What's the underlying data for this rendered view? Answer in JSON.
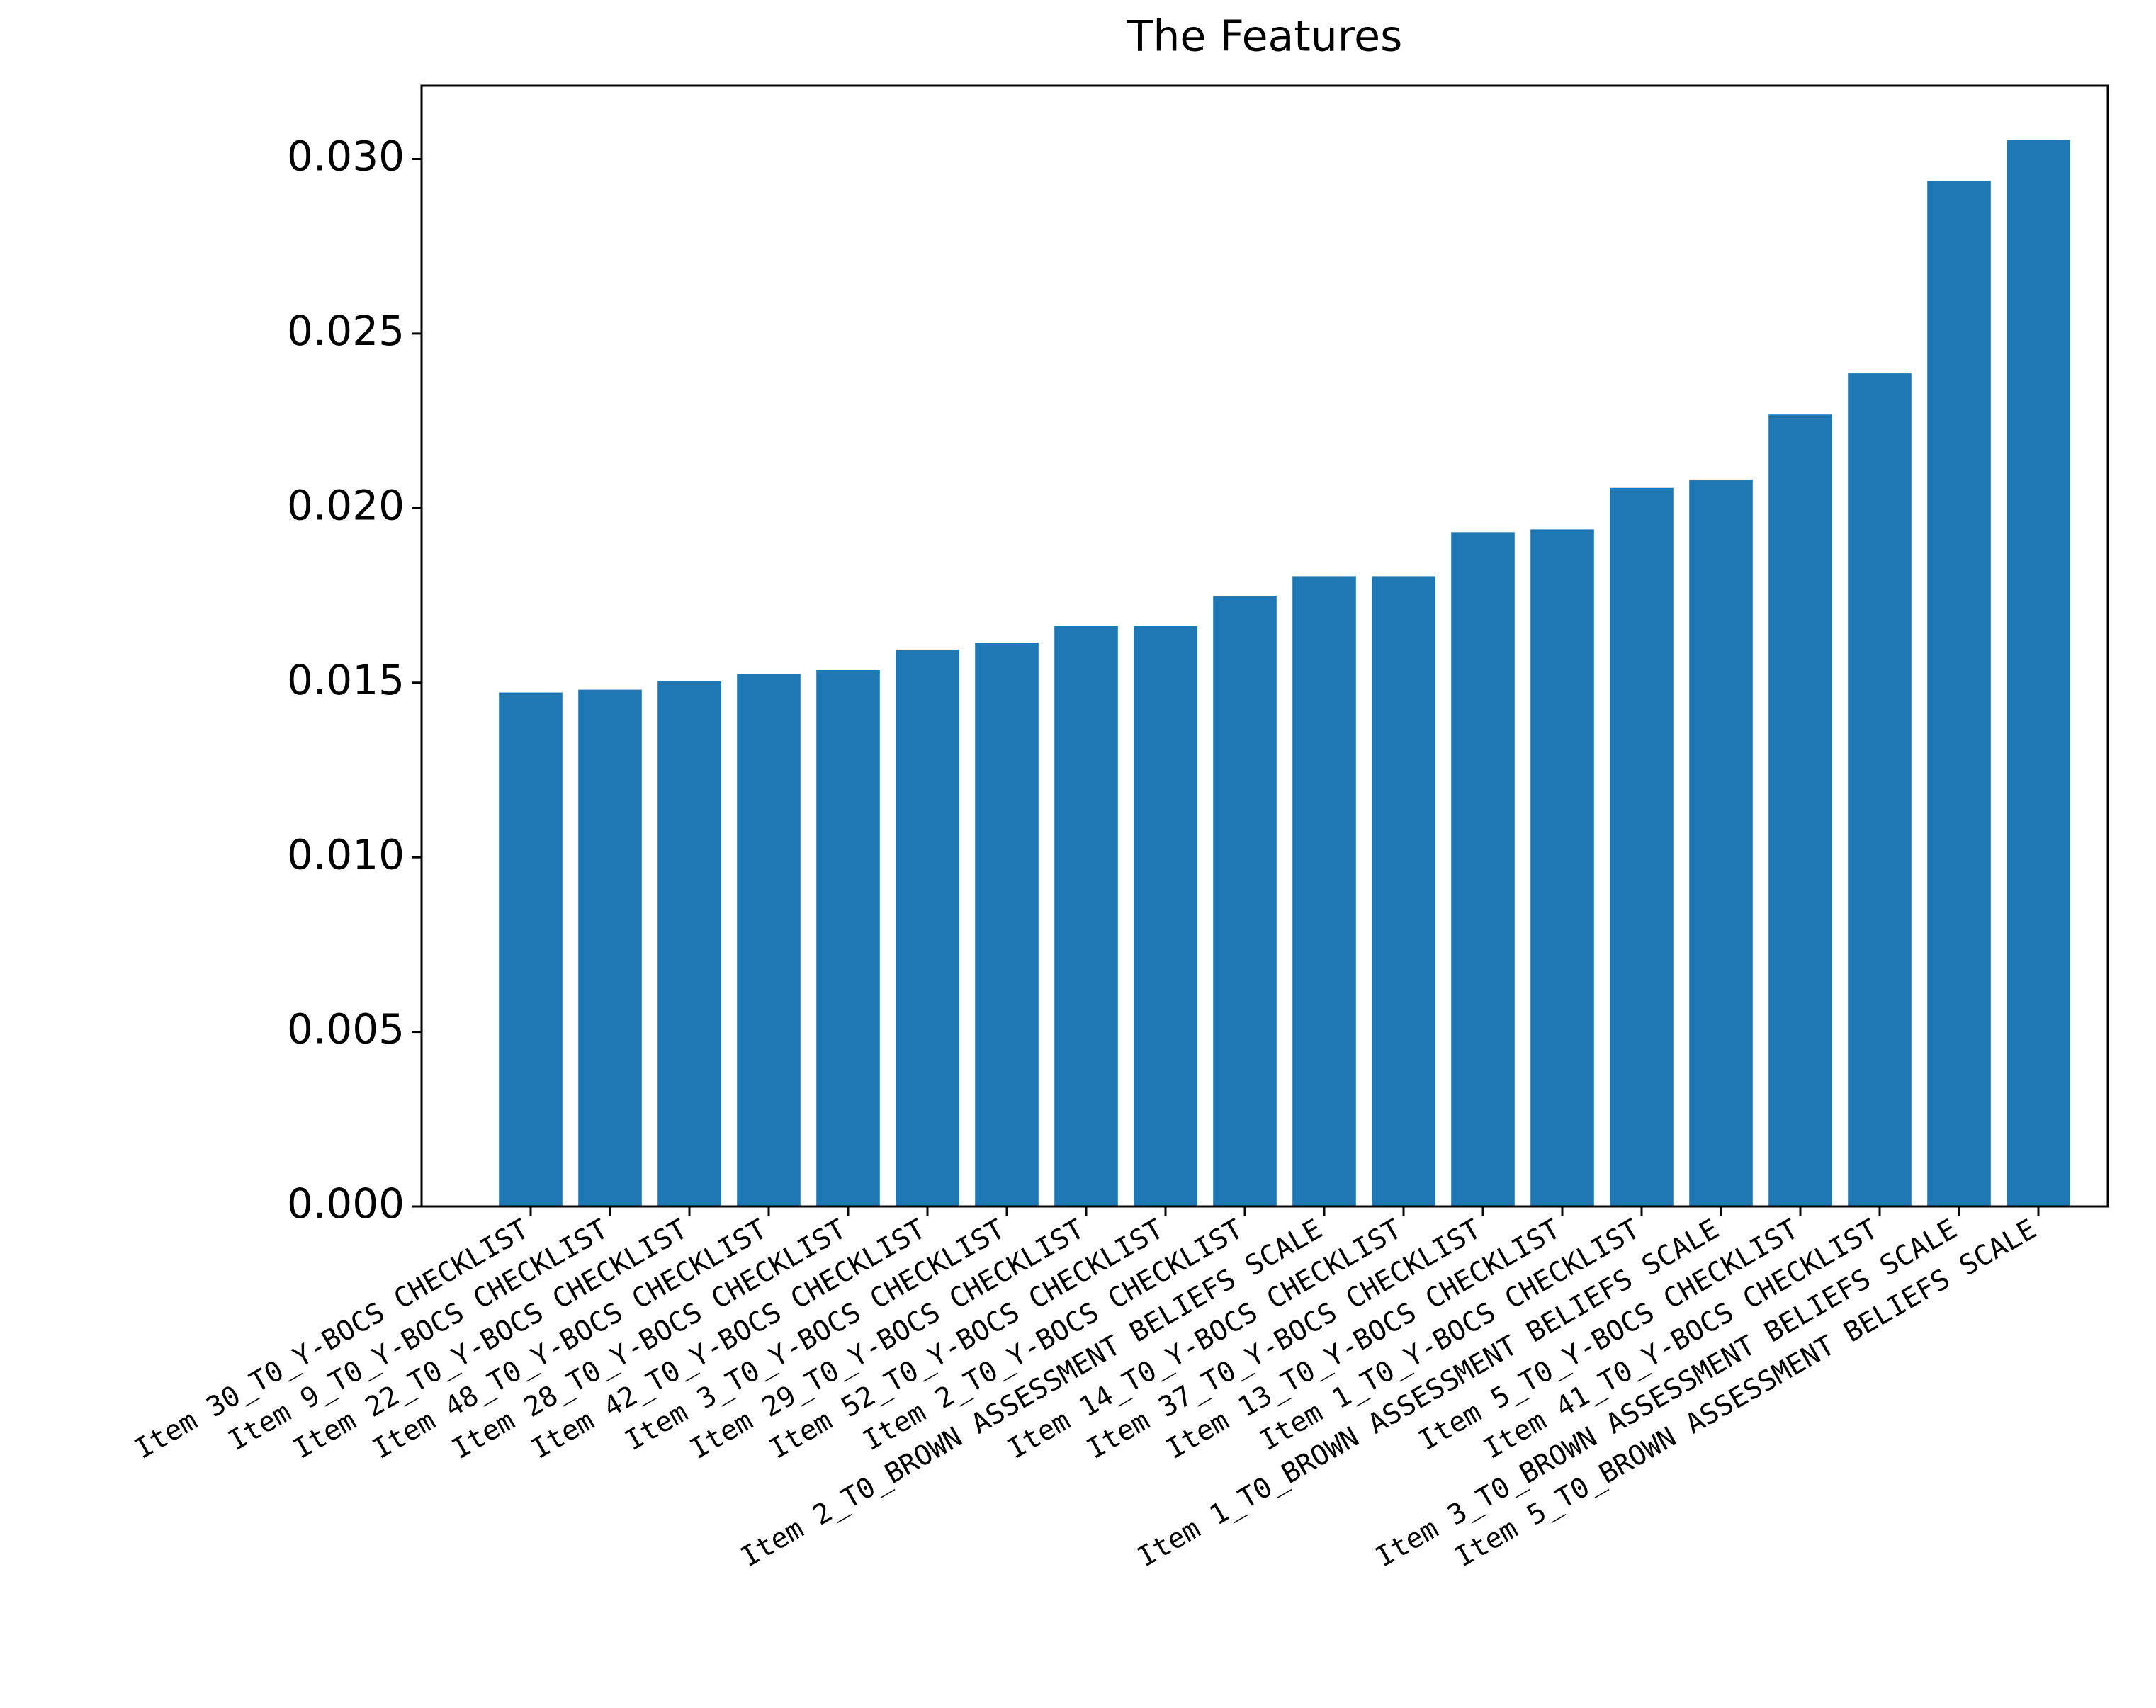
{
  "chart_data": {
    "type": "bar",
    "title": "The Features",
    "categories": [
      "Item 30_T0_Y-BOCS CHECKLIST",
      "Item 9_T0_Y-BOCS CHECKLIST",
      "Item 22_T0_Y-BOCS CHECKLIST",
      "Item 48_T0_Y-BOCS CHECKLIST",
      "Item 28_T0_Y-BOCS CHECKLIST",
      "Item 42_T0_Y-BOCS CHECKLIST",
      "Item 3_T0_Y-BOCS CHECKLIST",
      "Item 29_T0_Y-BOCS CHECKLIST",
      "Item 52_T0_Y-BOCS CHECKLIST",
      "Item 2_T0_Y-BOCS CHECKLIST",
      "Item 2_T0_BROWN ASSESSMENT BELIEFS SCALE",
      "Item 14_T0_Y-BOCS CHECKLIST",
      "Item 37_T0_Y-BOCS CHECKLIST",
      "Item 13_T0_Y-BOCS CHECKLIST",
      "Item 1_T0_Y-BOCS CHECKLIST",
      "Item 1_T0_BROWN ASSESSMENT BELIEFS SCALE",
      "Item 5_T0_Y-BOCS CHECKLIST",
      "Item 41_T0_Y-BOCS CHECKLIST",
      "Item 3_T0_BROWN ASSESSMENT BELIEFS SCALE",
      "Item 5_T0_BROWN ASSESSMENT BELIEFS SCALE"
    ],
    "values": [
      0.01472,
      0.0148,
      0.01504,
      0.01524,
      0.01536,
      0.01595,
      0.01615,
      0.01662,
      0.01662,
      0.01749,
      0.01805,
      0.01805,
      0.01931,
      0.01939,
      0.02058,
      0.02082,
      0.02268,
      0.02386,
      0.02937,
      0.03055
    ],
    "color": "#1f77b4",
    "ylim": [
      0,
      0.0321
    ],
    "yticks": [
      {
        "value": 0,
        "label": "0.000"
      },
      {
        "value": 0.005,
        "label": "0.005"
      },
      {
        "value": 0.01,
        "label": "0.010"
      },
      {
        "value": 0.015,
        "label": "0.015"
      },
      {
        "value": 0.02,
        "label": "0.020"
      },
      {
        "value": 0.025,
        "label": "0.025"
      },
      {
        "value": 0.03,
        "label": "0.030"
      }
    ],
    "grid": false
  }
}
